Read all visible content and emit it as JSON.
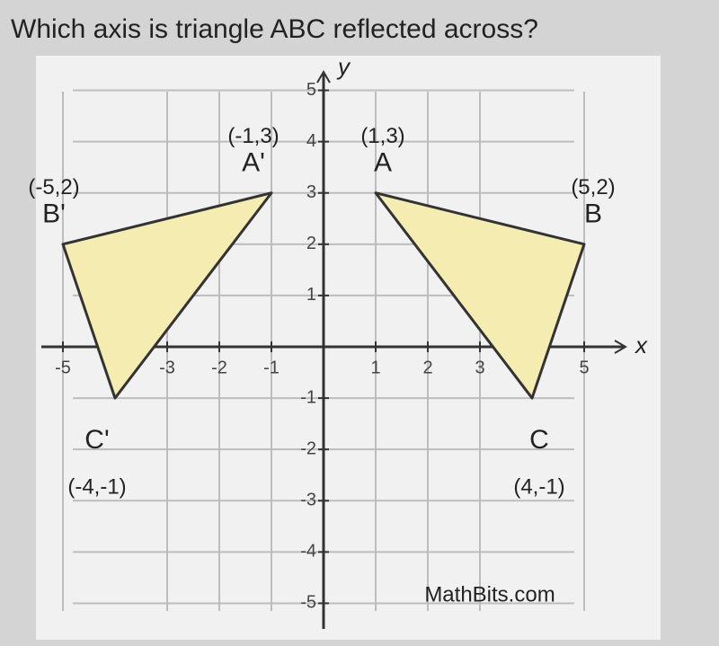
{
  "question": "Which axis is triangle ABC reflected across?",
  "chart_data": {
    "type": "polygon",
    "xlabel": "x",
    "ylabel": "y",
    "xlim": [
      -5.5,
      5.5
    ],
    "ylim": [
      -5.5,
      5.5
    ],
    "xticks": [
      -5,
      -3,
      -2,
      -1,
      1,
      2,
      3,
      5
    ],
    "yticks": [
      5,
      4,
      3,
      2,
      1,
      -1,
      -2,
      -3,
      -4,
      -5
    ],
    "grid": true,
    "shapes": [
      {
        "color": "#f4ecb0",
        "points": [
          {
            "label": "A'",
            "coord": "(-1,3)",
            "x": -1,
            "y": 3
          },
          {
            "label": "B'",
            "coord": "(-5,2)",
            "x": -5,
            "y": 2
          },
          {
            "label": "C'",
            "coord": "(-4,-1)",
            "x": -4,
            "y": -1
          }
        ]
      },
      {
        "color": "#f4ecb0",
        "points": [
          {
            "label": "A",
            "coord": "(1,3)",
            "x": 1,
            "y": 3
          },
          {
            "label": "B",
            "coord": "(5,2)",
            "x": 5,
            "y": 2
          },
          {
            "label": "C",
            "coord": "(4,-1)",
            "x": 4,
            "y": -1
          }
        ]
      }
    ],
    "watermark": "MathBits.com"
  }
}
